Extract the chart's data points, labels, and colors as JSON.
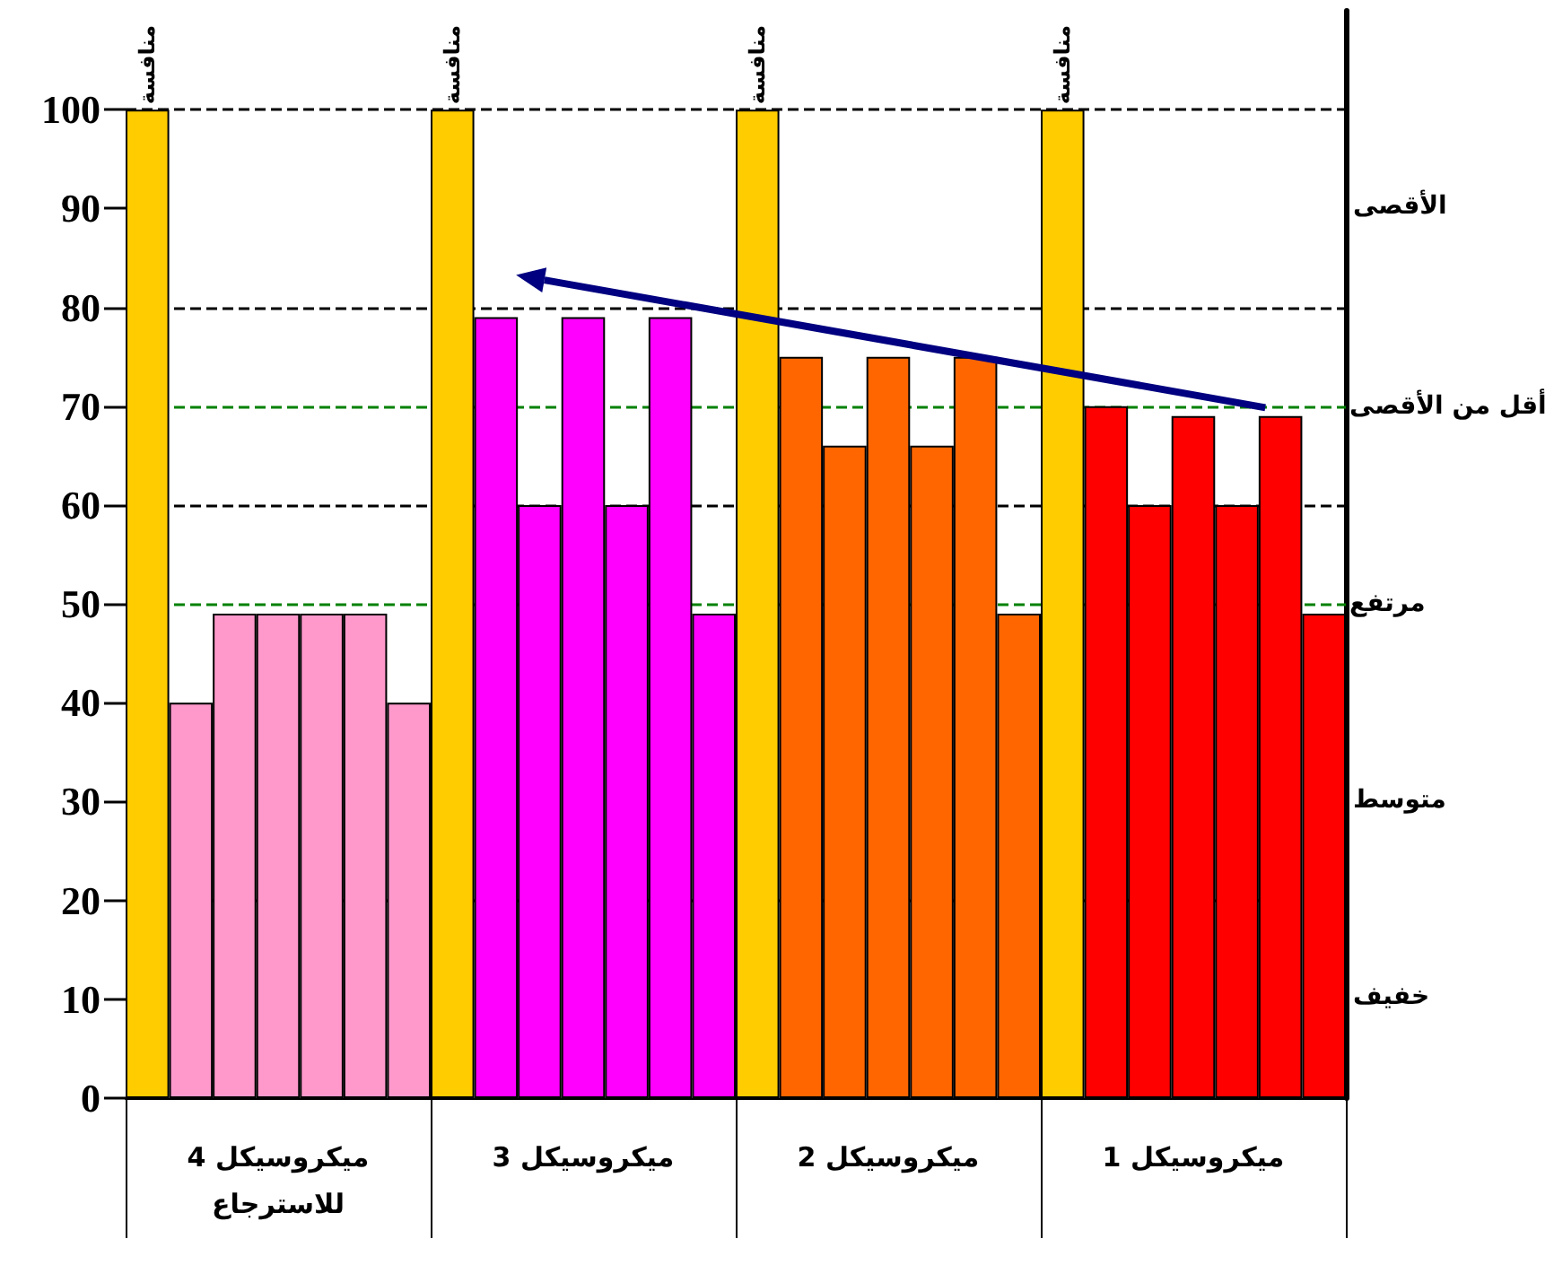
{
  "chart_data": {
    "type": "bar",
    "categories": [
      "ميكروسيكل 4\nللاسترجاع",
      "ميكروسيكل 3",
      "ميكروسيكل 2",
      "ميكروسيكل 1"
    ],
    "series": [
      {
        "name": "منافسة",
        "color": "#ffcc00",
        "values": [
          100,
          100,
          100,
          100
        ]
      },
      {
        "colors": [
          "#ff99cc",
          "#ff00ff",
          "#ff6600",
          "#ff0000"
        ],
        "values": [
          40,
          79,
          75,
          70
        ]
      },
      {
        "colors": [
          "#ff99cc",
          "#ff00ff",
          "#ff6600",
          "#ff0000"
        ],
        "values": [
          49,
          60,
          66,
          60
        ]
      },
      {
        "colors": [
          "#ff99cc",
          "#ff00ff",
          "#ff6600",
          "#ff0000"
        ],
        "values": [
          49,
          79,
          75,
          69
        ]
      },
      {
        "colors": [
          "#ff99cc",
          "#ff00ff",
          "#ff6600",
          "#ff0000"
        ],
        "values": [
          49,
          60,
          66,
          60
        ]
      },
      {
        "colors": [
          "#ff99cc",
          "#ff00ff",
          "#ff6600",
          "#ff0000"
        ],
        "values": [
          49,
          79,
          75,
          69
        ]
      },
      {
        "colors": [
          "#ff99cc",
          "#ff00ff",
          "#ff6600",
          "#ff0000"
        ],
        "values": [
          40,
          49,
          49,
          49
        ]
      }
    ],
    "ylim": [
      0,
      110
    ],
    "yticks": [
      0,
      10,
      20,
      30,
      40,
      50,
      60,
      70,
      80,
      90,
      100
    ],
    "grid": false,
    "legend": false,
    "ref_lines": [
      {
        "axis": "y",
        "value": 20,
        "color": "#000000",
        "line_style": "dashed"
      },
      {
        "axis": "y",
        "value": 60,
        "color": "#000000",
        "line_style": "dashed"
      },
      {
        "axis": "y",
        "value": 80,
        "color": "#000000",
        "line_style": "dashed"
      },
      {
        "axis": "y",
        "value": 100,
        "color": "#000000",
        "line_style": "dashed"
      },
      {
        "axis": "y",
        "value": 50,
        "label": "مرتفع",
        "color": "#008000",
        "line_style": "dashed"
      },
      {
        "axis": "y",
        "value": 70,
        "label": "أقل من الأقصى",
        "color": "#008000",
        "line_style": "dashed"
      }
    ],
    "annotations": [
      "الأقصى",
      "متوسط",
      "خفيف"
    ]
  }
}
